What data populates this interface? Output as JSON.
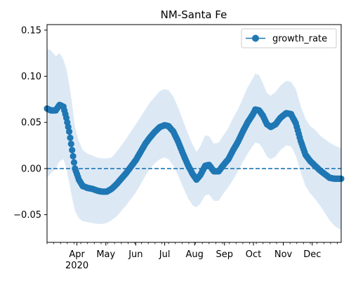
{
  "chart_data": {
    "type": "line",
    "title": "NM-Santa Fe",
    "xlabel": "",
    "ylabel": "",
    "x_start": "2020-03-01",
    "x_end": "2020-12-31",
    "ylim": [
      -0.08,
      0.156
    ],
    "yticks": [
      -0.05,
      0.0,
      0.05,
      0.1,
      0.15
    ],
    "ytick_labels": [
      "−0.05",
      "0.00",
      "0.05",
      "0.10",
      "0.15"
    ],
    "xticks": [
      {
        "date": "2020-04-01",
        "label": "Apr"
      },
      {
        "date": "2020-05-01",
        "label": "May"
      },
      {
        "date": "2020-06-01",
        "label": "Jun"
      },
      {
        "date": "2020-07-01",
        "label": "Jul"
      },
      {
        "date": "2020-08-01",
        "label": "Aug"
      },
      {
        "date": "2020-09-01",
        "label": "Sep"
      },
      {
        "date": "2020-10-01",
        "label": "Oct"
      },
      {
        "date": "2020-11-01",
        "label": "Nov"
      },
      {
        "date": "2020-12-01",
        "label": "Dec"
      }
    ],
    "year_label": "2020",
    "grid": false,
    "legend_position": "top-right",
    "reference_line": {
      "y": 0.0,
      "style": "dashed"
    },
    "series": [
      {
        "name": "growth_rate",
        "color": "#1f77b4",
        "band_color": "#dce9f5",
        "points": [
          {
            "date": "2020-03-01",
            "y": 0.065,
            "lower": -0.01,
            "upper": 0.13
          },
          {
            "date": "2020-03-05",
            "y": 0.063,
            "lower": -0.005,
            "upper": 0.128
          },
          {
            "date": "2020-03-10",
            "y": 0.063,
            "lower": 0.0,
            "upper": 0.122
          },
          {
            "date": "2020-03-14",
            "y": 0.069,
            "lower": 0.008,
            "upper": 0.125
          },
          {
            "date": "2020-03-18",
            "y": 0.067,
            "lower": 0.01,
            "upper": 0.118
          },
          {
            "date": "2020-03-21",
            "y": 0.055,
            "lower": 0.0,
            "upper": 0.108
          },
          {
            "date": "2020-03-24",
            "y": 0.04,
            "lower": -0.015,
            "upper": 0.092
          },
          {
            "date": "2020-03-27",
            "y": 0.02,
            "lower": -0.032,
            "upper": 0.07
          },
          {
            "date": "2020-03-30",
            "y": 0.0,
            "lower": -0.046,
            "upper": 0.045
          },
          {
            "date": "2020-04-03",
            "y": -0.012,
            "lower": -0.054,
            "upper": 0.03
          },
          {
            "date": "2020-04-07",
            "y": -0.019,
            "lower": -0.057,
            "upper": 0.02
          },
          {
            "date": "2020-04-12",
            "y": -0.021,
            "lower": -0.058,
            "upper": 0.016
          },
          {
            "date": "2020-04-17",
            "y": -0.022,
            "lower": -0.059,
            "upper": 0.014
          },
          {
            "date": "2020-04-22",
            "y": -0.024,
            "lower": -0.06,
            "upper": 0.012
          },
          {
            "date": "2020-04-27",
            "y": -0.025,
            "lower": -0.06,
            "upper": 0.011
          },
          {
            "date": "2020-05-02",
            "y": -0.025,
            "lower": -0.059,
            "upper": 0.011
          },
          {
            "date": "2020-05-07",
            "y": -0.022,
            "lower": -0.056,
            "upper": 0.012
          },
          {
            "date": "2020-05-12",
            "y": -0.017,
            "lower": -0.052,
            "upper": 0.018
          },
          {
            "date": "2020-05-17",
            "y": -0.011,
            "lower": -0.046,
            "upper": 0.025
          },
          {
            "date": "2020-05-22",
            "y": -0.005,
            "lower": -0.04,
            "upper": 0.032
          },
          {
            "date": "2020-05-27",
            "y": 0.002,
            "lower": -0.033,
            "upper": 0.04
          },
          {
            "date": "2020-06-01",
            "y": 0.009,
            "lower": -0.026,
            "upper": 0.048
          },
          {
            "date": "2020-06-06",
            "y": 0.018,
            "lower": -0.017,
            "upper": 0.056
          },
          {
            "date": "2020-06-11",
            "y": 0.027,
            "lower": -0.008,
            "upper": 0.064
          },
          {
            "date": "2020-06-16",
            "y": 0.034,
            "lower": 0.0,
            "upper": 0.072
          },
          {
            "date": "2020-06-21",
            "y": 0.04,
            "lower": 0.006,
            "upper": 0.078
          },
          {
            "date": "2020-06-26",
            "y": 0.045,
            "lower": 0.01,
            "upper": 0.084
          },
          {
            "date": "2020-07-01",
            "y": 0.047,
            "lower": 0.012,
            "upper": 0.086
          },
          {
            "date": "2020-07-05",
            "y": 0.046,
            "lower": 0.01,
            "upper": 0.085
          },
          {
            "date": "2020-07-10",
            "y": 0.04,
            "lower": 0.003,
            "upper": 0.078
          },
          {
            "date": "2020-07-15",
            "y": 0.029,
            "lower": -0.008,
            "upper": 0.066
          },
          {
            "date": "2020-07-20",
            "y": 0.016,
            "lower": -0.02,
            "upper": 0.052
          },
          {
            "date": "2020-07-25",
            "y": 0.004,
            "lower": -0.032,
            "upper": 0.038
          },
          {
            "date": "2020-07-30",
            "y": -0.006,
            "lower": -0.04,
            "upper": 0.026
          },
          {
            "date": "2020-08-03",
            "y": -0.012,
            "lower": -0.042,
            "upper": 0.018
          },
          {
            "date": "2020-08-07",
            "y": -0.007,
            "lower": -0.038,
            "upper": 0.024
          },
          {
            "date": "2020-08-12",
            "y": 0.003,
            "lower": -0.029,
            "upper": 0.036
          },
          {
            "date": "2020-08-16",
            "y": 0.004,
            "lower": -0.028,
            "upper": 0.035
          },
          {
            "date": "2020-08-21",
            "y": -0.003,
            "lower": -0.035,
            "upper": 0.027
          },
          {
            "date": "2020-08-26",
            "y": -0.003,
            "lower": -0.035,
            "upper": 0.028
          },
          {
            "date": "2020-08-31",
            "y": 0.004,
            "lower": -0.027,
            "upper": 0.036
          },
          {
            "date": "2020-09-05",
            "y": 0.01,
            "lower": -0.02,
            "upper": 0.044
          },
          {
            "date": "2020-09-10",
            "y": 0.02,
            "lower": -0.012,
            "upper": 0.055
          },
          {
            "date": "2020-09-15",
            "y": 0.029,
            "lower": -0.003,
            "upper": 0.064
          },
          {
            "date": "2020-09-20",
            "y": 0.04,
            "lower": 0.007,
            "upper": 0.076
          },
          {
            "date": "2020-09-25",
            "y": 0.05,
            "lower": 0.016,
            "upper": 0.088
          },
          {
            "date": "2020-09-30",
            "y": 0.058,
            "lower": 0.024,
            "upper": 0.097
          },
          {
            "date": "2020-10-03",
            "y": 0.064,
            "lower": 0.028,
            "upper": 0.103
          },
          {
            "date": "2020-10-07",
            "y": 0.063,
            "lower": 0.027,
            "upper": 0.101
          },
          {
            "date": "2020-10-11",
            "y": 0.057,
            "lower": 0.021,
            "upper": 0.092
          },
          {
            "date": "2020-10-15",
            "y": 0.048,
            "lower": 0.013,
            "upper": 0.082
          },
          {
            "date": "2020-10-19",
            "y": 0.045,
            "lower": 0.01,
            "upper": 0.079
          },
          {
            "date": "2020-10-24",
            "y": 0.048,
            "lower": 0.013,
            "upper": 0.083
          },
          {
            "date": "2020-10-29",
            "y": 0.055,
            "lower": 0.02,
            "upper": 0.09
          },
          {
            "date": "2020-11-04",
            "y": 0.06,
            "lower": 0.025,
            "upper": 0.095
          },
          {
            "date": "2020-11-09",
            "y": 0.059,
            "lower": 0.024,
            "upper": 0.094
          },
          {
            "date": "2020-11-14",
            "y": 0.049,
            "lower": 0.014,
            "upper": 0.086
          },
          {
            "date": "2020-11-19",
            "y": 0.03,
            "lower": -0.004,
            "upper": 0.068
          },
          {
            "date": "2020-11-24",
            "y": 0.015,
            "lower": -0.019,
            "upper": 0.054
          },
          {
            "date": "2020-11-29",
            "y": 0.008,
            "lower": -0.027,
            "upper": 0.046
          },
          {
            "date": "2020-12-04",
            "y": 0.003,
            "lower": -0.033,
            "upper": 0.042
          },
          {
            "date": "2020-12-09",
            "y": -0.002,
            "lower": -0.04,
            "upper": 0.036
          },
          {
            "date": "2020-12-14",
            "y": -0.006,
            "lower": -0.048,
            "upper": 0.032
          },
          {
            "date": "2020-12-19",
            "y": -0.01,
            "lower": -0.056,
            "upper": 0.028
          },
          {
            "date": "2020-12-24",
            "y": -0.011,
            "lower": -0.062,
            "upper": 0.025
          },
          {
            "date": "2020-12-31",
            "y": -0.011,
            "lower": -0.067,
            "upper": 0.022
          }
        ]
      }
    ]
  }
}
